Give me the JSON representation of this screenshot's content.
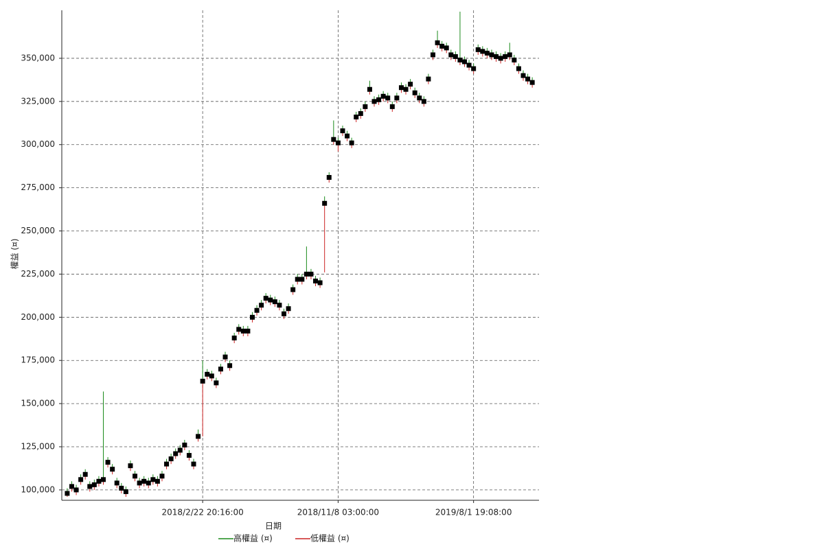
{
  "chart_data": {
    "type": "hilo",
    "y_label": "權益 (¤)",
    "x_label": "日期",
    "categories": [
      null,
      null,
      null,
      null,
      null,
      null,
      null,
      null,
      null,
      null,
      null,
      null,
      null,
      null,
      null,
      null,
      null,
      null,
      null,
      null,
      null,
      null,
      null,
      null,
      null,
      null,
      null,
      null,
      null,
      null,
      null,
      null,
      null,
      null,
      null,
      null,
      null,
      null,
      null,
      null,
      null,
      null,
      null,
      null,
      null,
      null,
      null,
      null,
      null,
      null,
      null,
      null,
      null,
      null,
      null,
      null,
      null,
      null,
      null,
      null,
      null,
      null,
      null,
      null,
      null,
      null,
      null,
      null,
      null,
      null,
      null,
      null,
      null,
      null,
      null,
      null,
      null,
      null,
      null,
      null,
      null,
      null,
      null,
      null,
      null,
      null,
      null,
      null,
      null,
      null,
      null,
      null,
      null,
      null,
      null,
      null,
      null,
      null,
      null,
      null,
      null,
      null,
      null,
      null
    ],
    "values": [
      98000,
      102000,
      100000,
      106000,
      109000,
      102000,
      103000,
      105000,
      106000,
      116000,
      112000,
      104000,
      101000,
      99000,
      114000,
      108000,
      104000,
      105000,
      104000,
      106000,
      105000,
      108000,
      115000,
      118000,
      121000,
      123000,
      126000,
      120000,
      115000,
      131000,
      163000,
      167000,
      166000,
      162000,
      170000,
      177000,
      172000,
      188000,
      193000,
      192000,
      192000,
      200000,
      204000,
      207000,
      211000,
      210000,
      209000,
      207000,
      202000,
      205000,
      216000,
      222000,
      222000,
      225000,
      225000,
      221000,
      220000,
      266000,
      281000,
      303000,
      301000,
      308000,
      305000,
      301000,
      316000,
      318000,
      322000,
      332000,
      325000,
      326000,
      328000,
      327000,
      322000,
      327000,
      333000,
      332000,
      335000,
      330000,
      327000,
      325000,
      338000,
      352000,
      359000,
      357000,
      356000,
      352000,
      351000,
      349000,
      348000,
      346000,
      344000,
      355000,
      354000,
      353000,
      352000,
      351000,
      350000,
      351000,
      352000,
      349000,
      344000,
      340000,
      338000,
      336000
    ],
    "marker_color": "#000000",
    "series": [
      {
        "name": "高權益 (¤)",
        "color": "#1a8a1a",
        "values": [
          101000,
          105000,
          103000,
          109000,
          112000,
          105000,
          106000,
          108000,
          157000,
          119000,
          115000,
          107000,
          104000,
          102000,
          117000,
          111000,
          107000,
          108000,
          107000,
          109000,
          108000,
          111000,
          118000,
          121000,
          124000,
          126000,
          129000,
          123000,
          118000,
          135000,
          175000,
          170000,
          169000,
          165000,
          173000,
          180000,
          175000,
          191000,
          196000,
          195000,
          195000,
          203000,
          207000,
          210000,
          214000,
          213000,
          212000,
          210000,
          205000,
          208000,
          219000,
          225000,
          225000,
          241000,
          228000,
          224000,
          223000,
          270000,
          284000,
          314000,
          304000,
          311000,
          308000,
          304000,
          319000,
          321000,
          325000,
          337000,
          328000,
          329000,
          331000,
          330000,
          325000,
          330000,
          336000,
          335000,
          338000,
          333000,
          330000,
          328000,
          341000,
          355000,
          366000,
          360000,
          359000,
          355000,
          354000,
          377000,
          351000,
          349000,
          347000,
          358000,
          357000,
          356000,
          355000,
          354000,
          353000,
          354000,
          359000,
          352000,
          347000,
          343000,
          341000,
          339000
        ]
      },
      {
        "name": "低權益 (¤)",
        "color": "#cc2222",
        "values": [
          96000,
          99000,
          97000,
          103000,
          106000,
          99000,
          100000,
          102000,
          103000,
          113000,
          109000,
          101000,
          98000,
          96000,
          111000,
          105000,
          101000,
          102000,
          101000,
          103000,
          102000,
          105000,
          112000,
          115000,
          118000,
          120000,
          123000,
          117000,
          112000,
          128000,
          131000,
          164000,
          163000,
          159000,
          167000,
          174000,
          169000,
          185000,
          190000,
          189000,
          189000,
          197000,
          201000,
          204000,
          208000,
          207000,
          206000,
          204000,
          199000,
          202000,
          213000,
          219000,
          219000,
          222000,
          222000,
          218000,
          217000,
          226000,
          278000,
          300000,
          296000,
          305000,
          302000,
          298000,
          313000,
          315000,
          319000,
          329000,
          322000,
          323000,
          325000,
          324000,
          319000,
          324000,
          330000,
          329000,
          332000,
          327000,
          324000,
          322000,
          335000,
          349000,
          356000,
          354000,
          353000,
          349000,
          348000,
          346000,
          345000,
          343000,
          341000,
          352000,
          351000,
          350000,
          349000,
          348000,
          347000,
          348000,
          349000,
          346000,
          341000,
          337000,
          335000,
          333000
        ]
      }
    ],
    "xlim": [
      -1.2,
      104.5
    ],
    "xticks": [
      {
        "value": 30,
        "label": "2018/2/22 20:16:00"
      },
      {
        "value": 60,
        "label": "2018/11/8 03:00:00"
      },
      {
        "value": 90,
        "label": "2019/8/1 19:08:00"
      }
    ],
    "ylim": [
      94000,
      377800
    ],
    "yticks": [
      {
        "value": 100000,
        "label": "100,000"
      },
      {
        "value": 125000,
        "label": "125,000"
      },
      {
        "value": 150000,
        "label": "150,000"
      },
      {
        "value": 175000,
        "label": "175,000"
      },
      {
        "value": 200000,
        "label": "200,000"
      },
      {
        "value": 225000,
        "label": "225,000"
      },
      {
        "value": 250000,
        "label": "250,000"
      },
      {
        "value": 275000,
        "label": "275,000"
      },
      {
        "value": 300000,
        "label": "300,000"
      },
      {
        "value": 325000,
        "label": "325,000"
      },
      {
        "value": 350000,
        "label": "350,000"
      }
    ],
    "grid": true
  }
}
